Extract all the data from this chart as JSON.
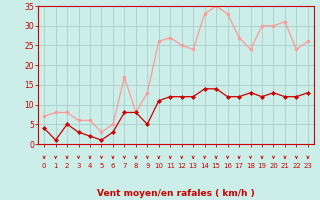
{
  "x": [
    0,
    1,
    2,
    3,
    4,
    5,
    6,
    7,
    8,
    9,
    10,
    11,
    12,
    13,
    14,
    15,
    16,
    17,
    18,
    19,
    20,
    21,
    22,
    23
  ],
  "vent_moyen": [
    4,
    1,
    5,
    3,
    2,
    1,
    3,
    8,
    8,
    5,
    11,
    12,
    12,
    12,
    14,
    14,
    12,
    12,
    13,
    12,
    13,
    12,
    12,
    13
  ],
  "rafales": [
    7,
    8,
    8,
    6,
    6,
    3,
    5,
    17,
    8,
    13,
    26,
    27,
    25,
    24,
    33,
    35,
    33,
    27,
    24,
    30,
    30,
    31,
    24,
    26
  ],
  "moyen_color": "#cc0000",
  "rafales_color": "#ff9999",
  "bg_color": "#cceee8",
  "grid_color": "#aacccc",
  "xlabel": "Vent moyen/en rafales ( km/h )",
  "xlabel_color": "#cc0000",
  "tick_color": "#cc0000",
  "spine_color": "#cc0000",
  "ylim": [
    0,
    35
  ],
  "yticks": [
    0,
    5,
    10,
    15,
    20,
    25,
    30,
    35
  ],
  "marker_size": 2.0,
  "linewidth": 0.9
}
